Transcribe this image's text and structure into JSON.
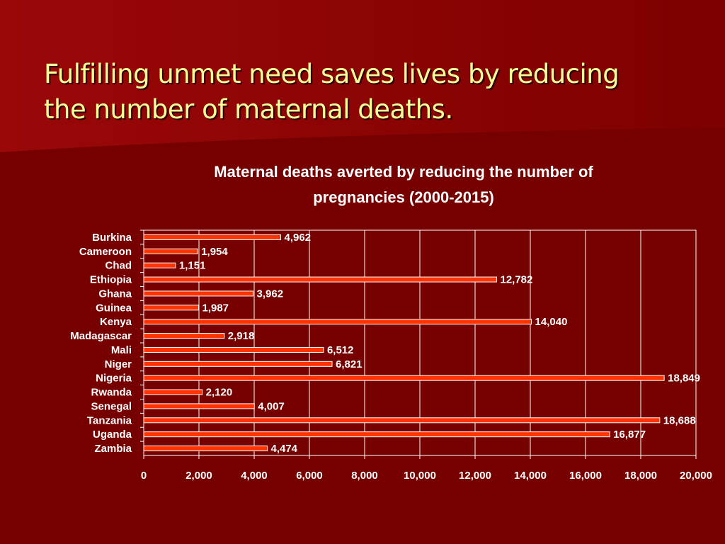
{
  "slide": {
    "title_line1": "Fulfilling unmet need saves lives by reducing",
    "title_line2": "the number of maternal deaths."
  },
  "colors": {
    "background": "#7a0000",
    "title_text": "#ffff99",
    "bar_fill": "#ff3300",
    "bar_border": "#ffffff",
    "gridline": "#ffffff",
    "text": "#ffffff"
  },
  "chart_data": {
    "type": "bar",
    "orientation": "horizontal",
    "title_line1": "Maternal deaths averted by reducing the number of",
    "title_line2": "pregnancies (2000-2015)",
    "xlabel": "",
    "ylabel": "",
    "xlim": [
      0,
      20000
    ],
    "x_ticks": [
      0,
      2000,
      4000,
      6000,
      8000,
      10000,
      12000,
      14000,
      16000,
      18000,
      20000
    ],
    "x_tick_labels": [
      "0",
      "2,000",
      "4,000",
      "6,000",
      "8,000",
      "10,000",
      "12,000",
      "14,000",
      "16,000",
      "18,000",
      "20,000"
    ],
    "grid": "vertical",
    "categories": [
      "Burkina",
      "Cameroon",
      "Chad",
      "Ethiopia",
      "Ghana",
      "Guinea",
      "Kenya",
      "Madagascar",
      "Mali",
      "Niger",
      "Nigeria",
      "Rwanda",
      "Senegal",
      "Tanzania",
      "Uganda",
      "Zambia"
    ],
    "values": [
      4962,
      1954,
      1151,
      12782,
      3962,
      1987,
      14040,
      2918,
      6512,
      6821,
      18849,
      2120,
      4007,
      18688,
      16877,
      4474
    ],
    "data_labels": [
      "4,962",
      "1,954",
      "1,151",
      "12,782",
      "3,962",
      "1,987",
      "14,040",
      "2,918",
      "6,512",
      "6,821",
      "18,849",
      "2,120",
      "4,007",
      "18,688",
      "16,877",
      "4,474"
    ]
  }
}
